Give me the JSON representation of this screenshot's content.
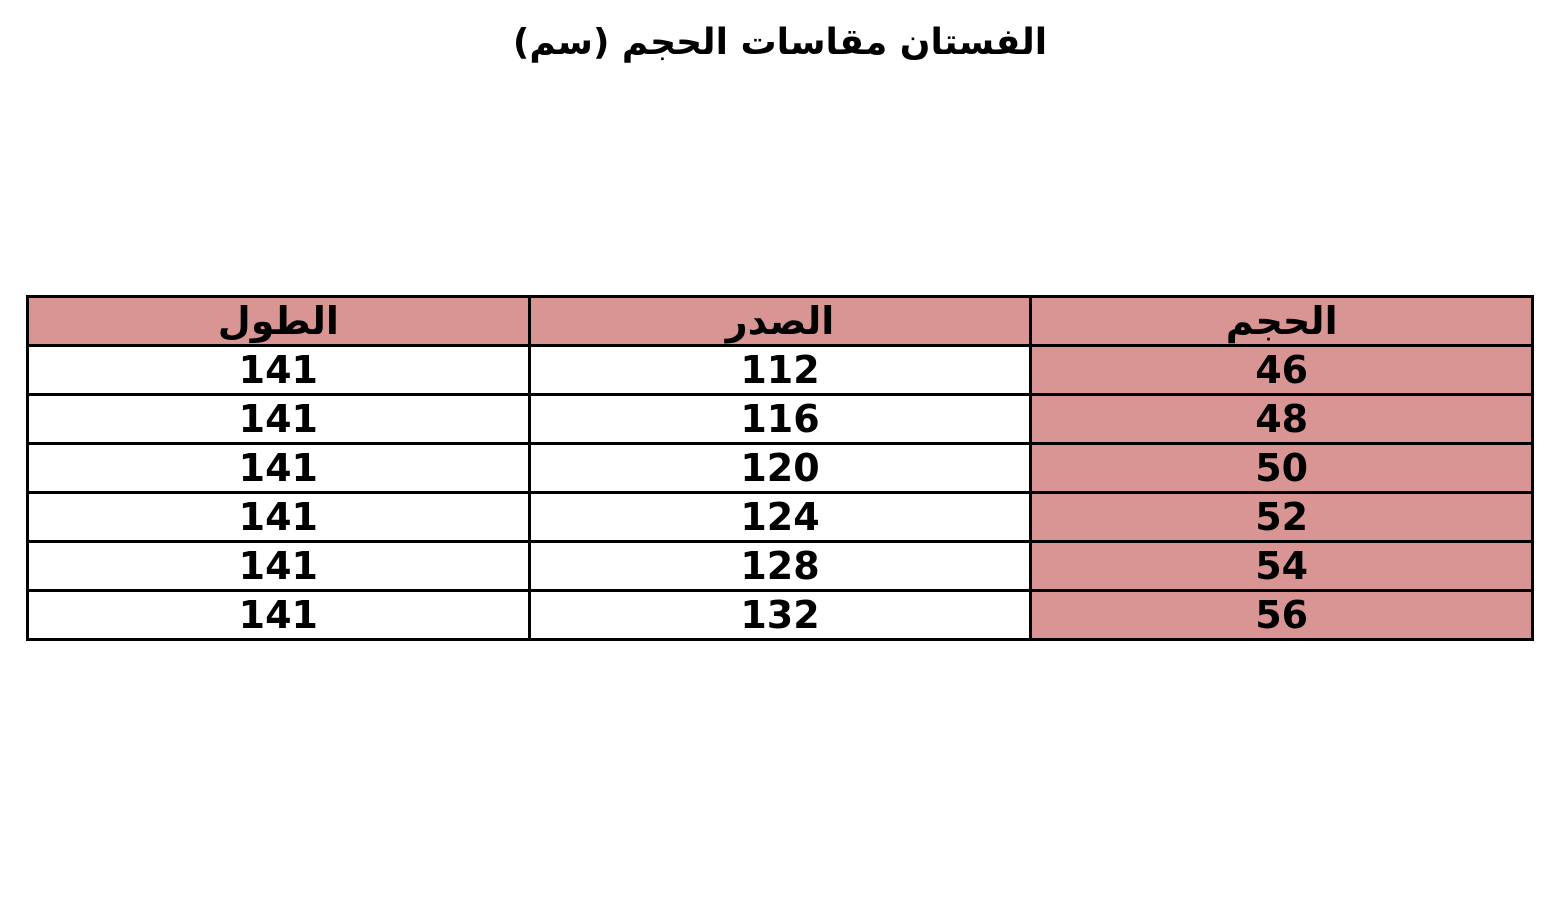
{
  "title": "الفستان مقاسات الحجم (سم)",
  "header_color": "#d99594",
  "table": {
    "headers": [
      "الحجم",
      "الصدر",
      "الطول"
    ],
    "rows": [
      [
        "46",
        "112",
        "141"
      ],
      [
        "48",
        "116",
        "141"
      ],
      [
        "50",
        "120",
        "141"
      ],
      [
        "52",
        "124",
        "141"
      ],
      [
        "54",
        "128",
        "141"
      ],
      [
        "56",
        "132",
        "141"
      ]
    ]
  }
}
